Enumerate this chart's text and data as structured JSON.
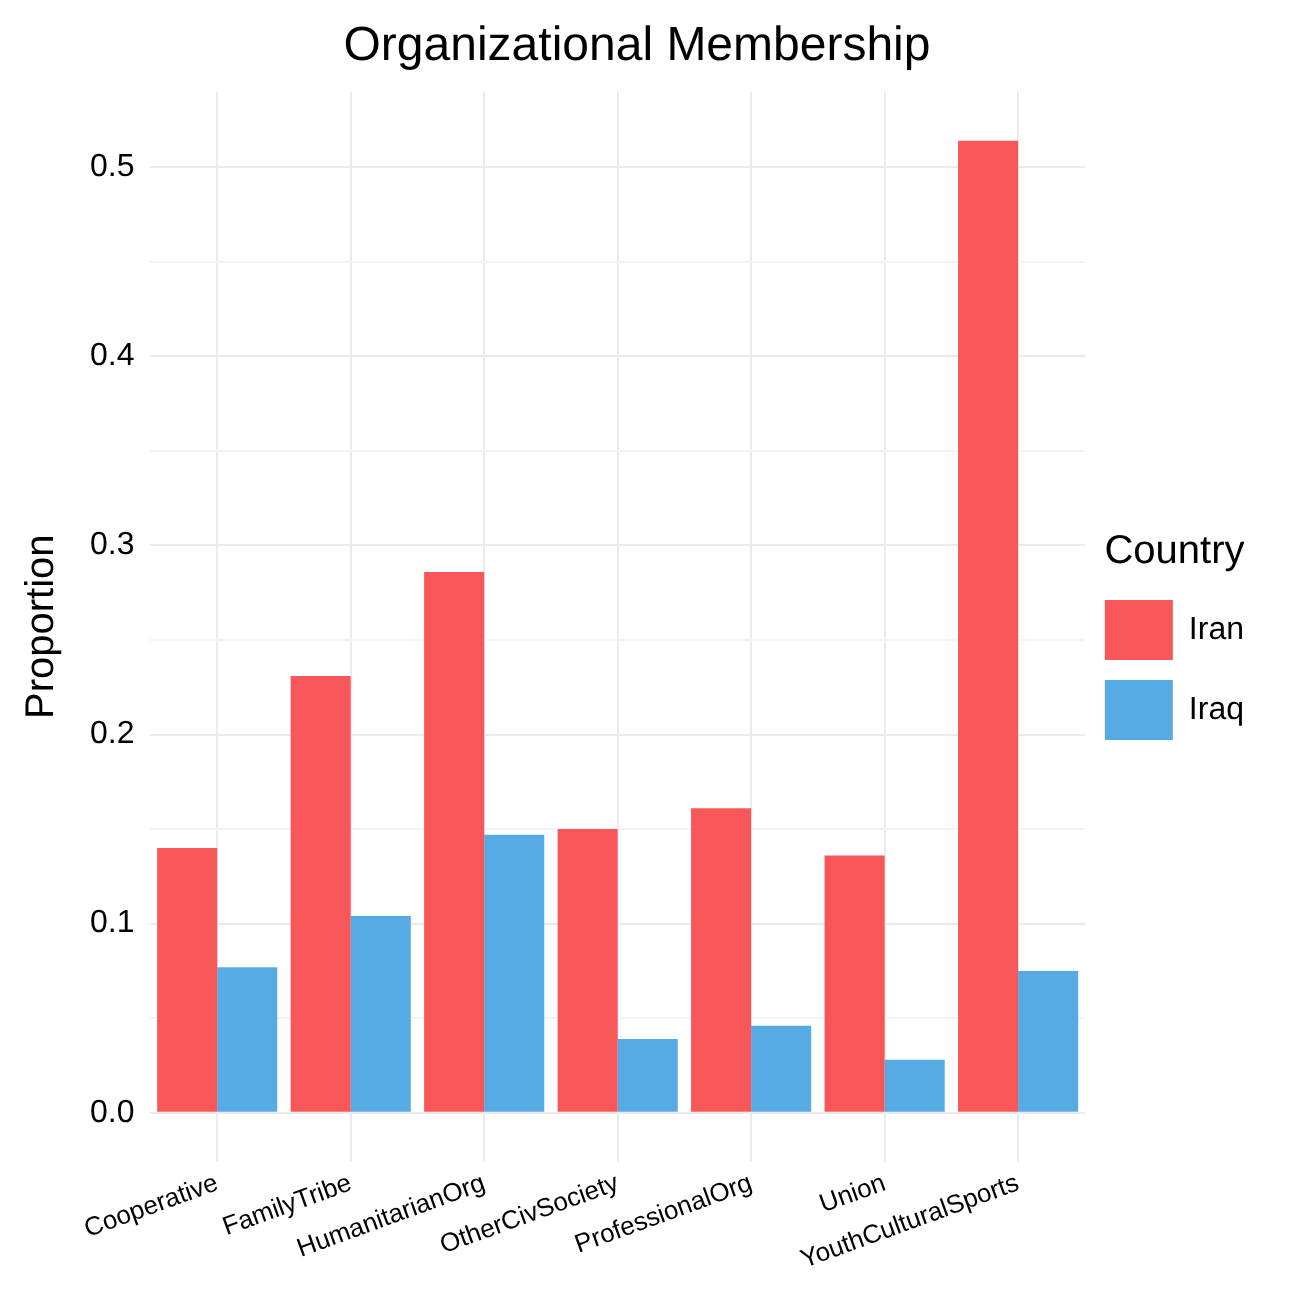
{
  "chart_data": {
    "type": "bar",
    "title": "Organizational Membership",
    "ylabel": "Proportion",
    "legend_title": "Country",
    "categories": [
      "Cooperative",
      "FamilyTribe",
      "HumanitarianOrg",
      "OtherCivSociety",
      "ProfessionalOrg",
      "Union",
      "YouthCulturalSports"
    ],
    "series": [
      {
        "name": "Iran",
        "color": "#f8575a",
        "values": [
          0.14,
          0.231,
          0.286,
          0.15,
          0.161,
          0.136,
          0.514
        ]
      },
      {
        "name": "Iraq",
        "color": "#56abe4",
        "values": [
          0.077,
          0.104,
          0.147,
          0.039,
          0.046,
          0.028,
          0.075
        ]
      }
    ],
    "ylim": [
      -0.026,
      0.54
    ],
    "yticks": [
      {
        "value": 0,
        "label": "0.0"
      },
      {
        "value": 0.05,
        "label": null
      },
      {
        "value": 0.1,
        "label": "0.1"
      },
      {
        "value": 0.15,
        "label": null
      },
      {
        "value": 0.2,
        "label": "0.2"
      },
      {
        "value": 0.25,
        "label": null
      },
      {
        "value": 0.3,
        "label": "0.3"
      },
      {
        "value": 0.35,
        "label": null
      },
      {
        "value": 0.4,
        "label": "0.4"
      },
      {
        "value": 0.45,
        "label": null
      },
      {
        "value": 0.5,
        "label": "0.5"
      }
    ],
    "grid": true,
    "legend": "right"
  }
}
